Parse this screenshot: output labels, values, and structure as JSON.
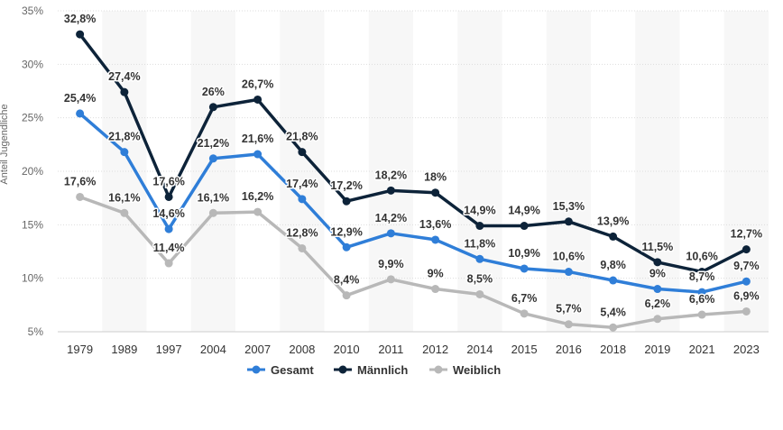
{
  "chart_data": {
    "type": "line",
    "title": "",
    "xlabel": "",
    "ylabel": "Anteil Jugendliche",
    "ylim": [
      5,
      35
    ],
    "yticks": [
      "5%",
      "10%",
      "15%",
      "20%",
      "25%",
      "30%",
      "35%"
    ],
    "grid": true,
    "legend_position": "bottom",
    "categories": [
      "1979",
      "1989",
      "1997",
      "2004",
      "2007",
      "2008",
      "2010",
      "2011",
      "2012",
      "2014",
      "2015",
      "2016",
      "2018",
      "2019",
      "2021",
      "2023"
    ],
    "series": [
      {
        "name": "Gesamt",
        "color": "#2f7ed8",
        "values": [
          25.4,
          21.8,
          14.6,
          21.2,
          21.6,
          17.4,
          12.9,
          14.2,
          13.6,
          11.8,
          10.9,
          10.6,
          9.8,
          9.0,
          8.7,
          9.7
        ],
        "labels": [
          "25,4%",
          "21,8%",
          "14,6%",
          "21,2%",
          "21,6%",
          "17,4%",
          "12,9%",
          "14,2%",
          "13,6%",
          "11,8%",
          "10,9%",
          "10,6%",
          "9,8%",
          "9%",
          "8,7%",
          "9,7%"
        ]
      },
      {
        "name": "Männlich",
        "color": "#0d2339",
        "values": [
          32.8,
          27.4,
          17.6,
          26.0,
          26.7,
          21.8,
          17.2,
          18.2,
          18.0,
          14.9,
          14.9,
          15.3,
          13.9,
          11.5,
          10.6,
          12.7
        ],
        "labels": [
          "32,8%",
          "27,4%",
          "17,6%",
          "26%",
          "26,7%",
          "21,8%",
          "17,2%",
          "18,2%",
          "18%",
          "14,9%",
          "14,9%",
          "15,3%",
          "13,9%",
          "11,5%",
          "10,6%",
          "12,7%"
        ]
      },
      {
        "name": "Weiblich",
        "color": "#b8b8b8",
        "values": [
          17.6,
          16.1,
          11.4,
          16.1,
          16.2,
          12.8,
          8.4,
          9.9,
          9.0,
          8.5,
          6.7,
          5.7,
          5.4,
          6.2,
          6.6,
          6.9
        ],
        "labels": [
          "17,6%",
          "16,1%",
          "11,4%",
          "16,1%",
          "16,2%",
          "12,8%",
          "8,4%",
          "9,9%",
          "9%",
          "8,5%",
          "6,7%",
          "5,7%",
          "5,4%",
          "6,2%",
          "6,6%",
          "6,9%"
        ]
      }
    ]
  }
}
